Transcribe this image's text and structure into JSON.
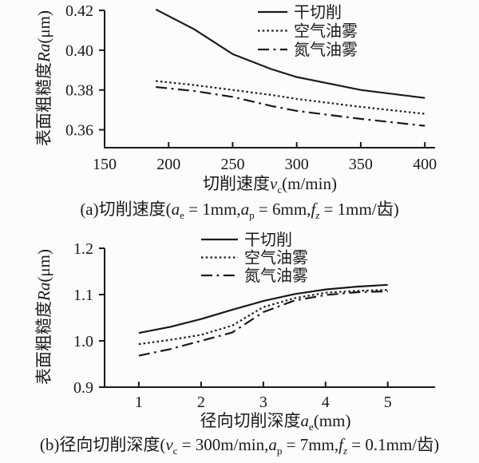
{
  "figure": {
    "background": "#fcfcfc",
    "ink_color": "#1a1a1a"
  },
  "captions": {
    "a": [
      {
        "t": "(a)切削速度("
      },
      {
        "t": "a",
        "i": 1
      },
      {
        "t": "e",
        "sub": 1
      },
      {
        "t": " = 1mm,"
      },
      {
        "t": "a",
        "i": 1
      },
      {
        "t": "p",
        "sub": 1
      },
      {
        "t": " = 6mm,"
      },
      {
        "t": "f",
        "i": 1
      },
      {
        "t": "z",
        "sub": 1,
        "i": 1
      },
      {
        "t": " = 1mm/齿)"
      }
    ],
    "b": [
      {
        "t": "(b)径向切削深度("
      },
      {
        "t": "v",
        "i": 1
      },
      {
        "t": "c",
        "sub": 1
      },
      {
        "t": " = 300m/min,"
      },
      {
        "t": "a",
        "i": 1
      },
      {
        "t": "p",
        "sub": 1
      },
      {
        "t": " = 7mm,"
      },
      {
        "t": "f",
        "i": 1
      },
      {
        "t": "z",
        "sub": 1,
        "i": 1
      },
      {
        "t": " = 0.1mm/齿)"
      }
    ]
  },
  "chart_data": [
    {
      "id": "chart-a",
      "type": "line",
      "title": "",
      "grid": false,
      "legend_position": "upper-right-inside",
      "xlabel": [
        {
          "t": "切削速度"
        },
        {
          "t": "v",
          "i": 1
        },
        {
          "t": "c",
          "sub": 1
        },
        {
          "t": "(m/min)"
        }
      ],
      "ylabel": [
        {
          "t": "表面粗糙度"
        },
        {
          "t": "Ra",
          "i": 1
        },
        {
          "t": "(μm)"
        }
      ],
      "xlim": [
        150,
        408
      ],
      "ylim": [
        0.351,
        0.42
      ],
      "xticks": [
        150,
        200,
        250,
        300,
        350,
        400
      ],
      "xtick_labels": [
        "150",
        "200",
        "250",
        "300",
        "350",
        "400"
      ],
      "yticks": [
        0.36,
        0.38,
        0.4,
        0.42
      ],
      "ytick_labels": [
        "0.36",
        "0.38",
        "0.40",
        "0.42"
      ],
      "x": [
        190,
        220,
        250,
        280,
        300,
        350,
        400
      ],
      "series": [
        {
          "key": "dry-cutting",
          "name": "干切削",
          "style": "solid",
          "values": [
            0.4205,
            0.4105,
            0.398,
            0.3905,
            0.3865,
            0.38,
            0.376
          ]
        },
        {
          "key": "air-oil-mist",
          "name": "空气油雾",
          "style": "dotted",
          "values": [
            0.3845,
            0.3825,
            0.38,
            0.3775,
            0.3755,
            0.3715,
            0.368
          ]
        },
        {
          "key": "nitrogen-oil-mist",
          "name": "氮气油雾",
          "style": "dashdot",
          "values": [
            0.3815,
            0.3795,
            0.3765,
            0.372,
            0.3695,
            0.3655,
            0.362
          ]
        }
      ]
    },
    {
      "id": "chart-b",
      "type": "line",
      "title": "",
      "grid": false,
      "legend_position": "upper-center-inside",
      "xlabel": [
        {
          "t": "径向切削深度"
        },
        {
          "t": "a",
          "i": 1
        },
        {
          "t": "e",
          "sub": 1
        },
        {
          "t": "(mm)"
        }
      ],
      "ylabel": [
        {
          "t": "表面粗糙度"
        },
        {
          "t": "Ra",
          "i": 1
        },
        {
          "t": "(μm)"
        }
      ],
      "xlim": [
        0.45,
        5.76
      ],
      "ylim": [
        0.9,
        1.2
      ],
      "xticks": [
        1,
        2,
        3,
        4,
        5
      ],
      "xtick_labels": [
        "1",
        "2",
        "3",
        "4",
        "5"
      ],
      "yticks": [
        0.9,
        1.0,
        1.1,
        1.2
      ],
      "ytick_labels": [
        "0.9",
        "1.0",
        "1.1",
        "1.2"
      ],
      "x": [
        1,
        1.5,
        2,
        2.5,
        3,
        3.5,
        4,
        4.5,
        5
      ],
      "series": [
        {
          "key": "dry-cutting",
          "name": "干切削",
          "style": "solid",
          "values": [
            1.017,
            1.03,
            1.047,
            1.067,
            1.086,
            1.101,
            1.111,
            1.117,
            1.121
          ]
        },
        {
          "key": "air-oil-mist",
          "name": "空气油雾",
          "style": "dotted",
          "values": [
            0.993,
            1.002,
            1.013,
            1.033,
            1.073,
            1.092,
            1.104,
            1.108,
            1.11
          ]
        },
        {
          "key": "nitrogen-oil-mist",
          "name": "氮气油雾",
          "style": "dashdot",
          "values": [
            0.968,
            0.982,
            1.0,
            1.018,
            1.062,
            1.087,
            1.099,
            1.105,
            1.107
          ]
        }
      ]
    }
  ]
}
